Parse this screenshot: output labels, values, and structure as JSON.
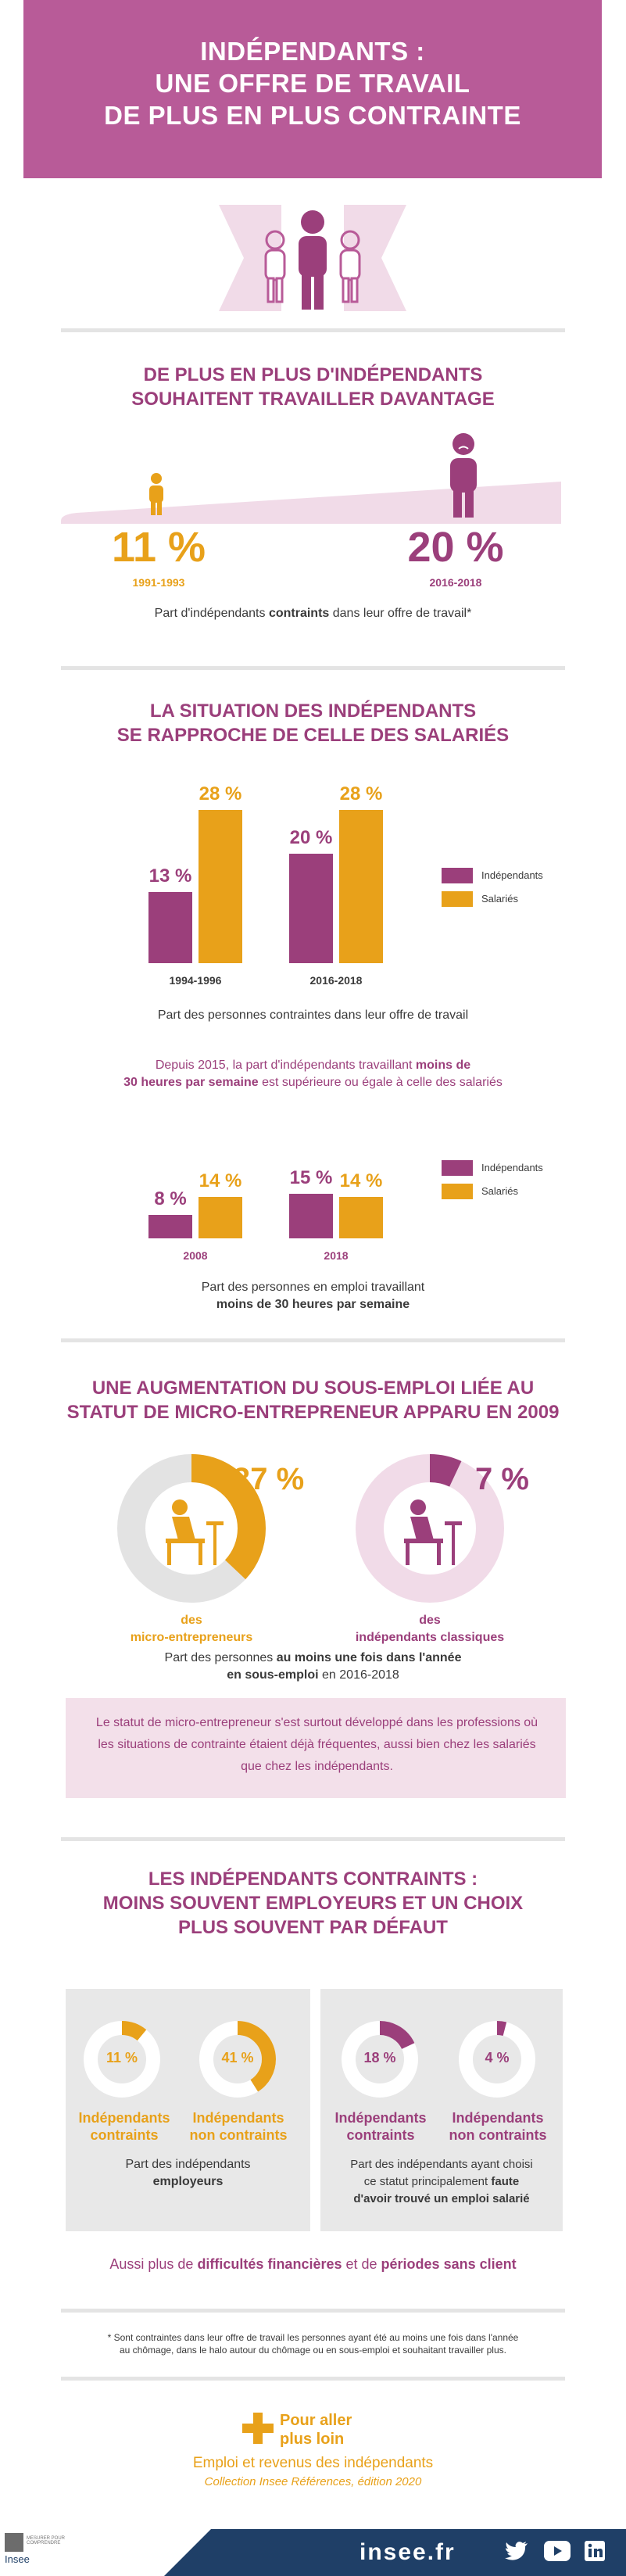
{
  "header": {
    "title_lines": [
      "INDÉPENDANTS :",
      "UNE OFFRE DE TRAVAIL",
      "DE PLUS EN PLUS CONTRAINTE"
    ]
  },
  "colors": {
    "purple": "#9b3f7b",
    "orange": "#e8a11a",
    "header_bg": "#b85b98",
    "pink_bg": "#f3e0ea",
    "navy": "#1f3f67"
  },
  "section1": {
    "title_lines": [
      "DE PLUS EN PLUS D'INDÉPENDANTS",
      "SOUHAITENT TRAVAILLER DAVANTAGE"
    ],
    "left": {
      "value": "11 %",
      "period": "1991-1993"
    },
    "right": {
      "value": "20 %",
      "period": "2016-2018"
    },
    "caption_pre": "Part d'indépendants ",
    "caption_bold": "contraints",
    "caption_post": " dans leur offre de travail*"
  },
  "section2": {
    "title_lines": [
      "LA SITUATION DES INDÉPENDANTS",
      "SE RAPPROCHE DE CELLE DES SALARIÉS"
    ],
    "legend": [
      "Indépendants",
      "Salariés"
    ],
    "caption1": "Part des personnes contraintes dans leur offre de travail",
    "intro_line1_pre": "Depuis 2015, la part d'indépendants travaillant ",
    "intro_line1_bold": "moins de",
    "intro_line2_bold": "30 heures par semaine",
    "intro_line2_post": " est supérieure ou égale à celle des salariés",
    "caption2_line1": "Part des personnes en emploi travaillant",
    "caption2_line2": "moins de 30 heures par semaine"
  },
  "chart_data": [
    {
      "type": "bar",
      "categories": [
        "1994-1996",
        "2016-2018"
      ],
      "series": [
        {
          "name": "Indépendants",
          "values": [
            13,
            20
          ],
          "labels": [
            "13 %",
            "20 %"
          ]
        },
        {
          "name": "Salariés",
          "values": [
            28,
            28
          ],
          "labels": [
            "28 %",
            "28 %"
          ]
        }
      ]
    },
    {
      "type": "bar",
      "categories": [
        "2008",
        "2018"
      ],
      "series": [
        {
          "name": "Indépendants",
          "values": [
            8,
            15
          ],
          "labels": [
            "8 %",
            "15 %"
          ]
        },
        {
          "name": "Salariés",
          "values": [
            14,
            14
          ],
          "labels": [
            "14 %",
            "14 %"
          ]
        }
      ]
    }
  ],
  "section3": {
    "title_lines": [
      "UNE AUGMENTATION DU SOUS-EMPLOI LIÉE AU",
      "STATUT DE MICRO-ENTREPRENEUR APPARU EN 2009"
    ],
    "left": {
      "value": "37 %",
      "fraction": 0.37,
      "label_line1": "des",
      "label_line2": "micro-entrepreneurs"
    },
    "right": {
      "value": "7 %",
      "fraction": 0.07,
      "label_line1": "des",
      "label_line2": "indépendants classiques"
    },
    "caption_pre": "Part des personnes ",
    "caption_bold1": "au moins une fois dans l'année",
    "caption_bold2": "en sous-emploi",
    "caption_post": " en 2016-2018",
    "box_text": "Le statut de micro-entrepreneur s'est surtout développé dans les professions où les situations de contrainte étaient déjà fréquentes, aussi bien chez les salariés que chez les indépendants."
  },
  "section4": {
    "title_lines": [
      "LES INDÉPENDANTS CONTRAINTS :",
      "MOINS SOUVENT EMPLOYEURS ET UN CHOIX",
      "PLUS SOUVENT PAR DÉFAUT"
    ],
    "left_panel": {
      "donuts": [
        {
          "value": "11 %",
          "fraction": 0.11,
          "label_line1": "Indépendants",
          "label_line2": "contraints"
        },
        {
          "value": "41 %",
          "fraction": 0.41,
          "label_line1": "Indépendants",
          "label_line2": "non contraints"
        }
      ],
      "caption_line1": "Part des indépendants",
      "caption_line2": "employeurs"
    },
    "right_panel": {
      "donuts": [
        {
          "value": "18 %",
          "fraction": 0.18,
          "label_line1": "Indépendants",
          "label_line2": "contraints"
        },
        {
          "value": "4 %",
          "fraction": 0.04,
          "label_line1": "Indépendants",
          "label_line2": "non contraints"
        }
      ],
      "caption_line1": "Part des indépendants ayant choisi",
      "caption_line2_pre": "ce statut principalement ",
      "caption_line2_bold": "faute",
      "caption_line3": "d'avoir trouvé un emploi salarié"
    },
    "also_pre": "Aussi plus de ",
    "also_bold1": "difficultés financières",
    "also_mid": " et de ",
    "also_bold2": "périodes sans client"
  },
  "footnote": {
    "line1": "* Sont contraintes dans leur offre de travail les personnes ayant été au moins une fois dans l'année",
    "line2": "au chômage, dans le halo autour du chômage ou en sous-emploi et souhaitant travailler plus."
  },
  "more": {
    "label_line1": "Pour aller",
    "label_line2": "plus loin",
    "title": "Emploi et revenus des indépendants",
    "subtitle": "Collection Insee Références, édition 2020"
  },
  "footer": {
    "site": "insee.fr",
    "logo_text": "Insee",
    "logo_tagline": "MESURER POUR COMPRENDRE",
    "icons": [
      "twitter-icon",
      "youtube-icon",
      "linkedin-icon"
    ]
  }
}
